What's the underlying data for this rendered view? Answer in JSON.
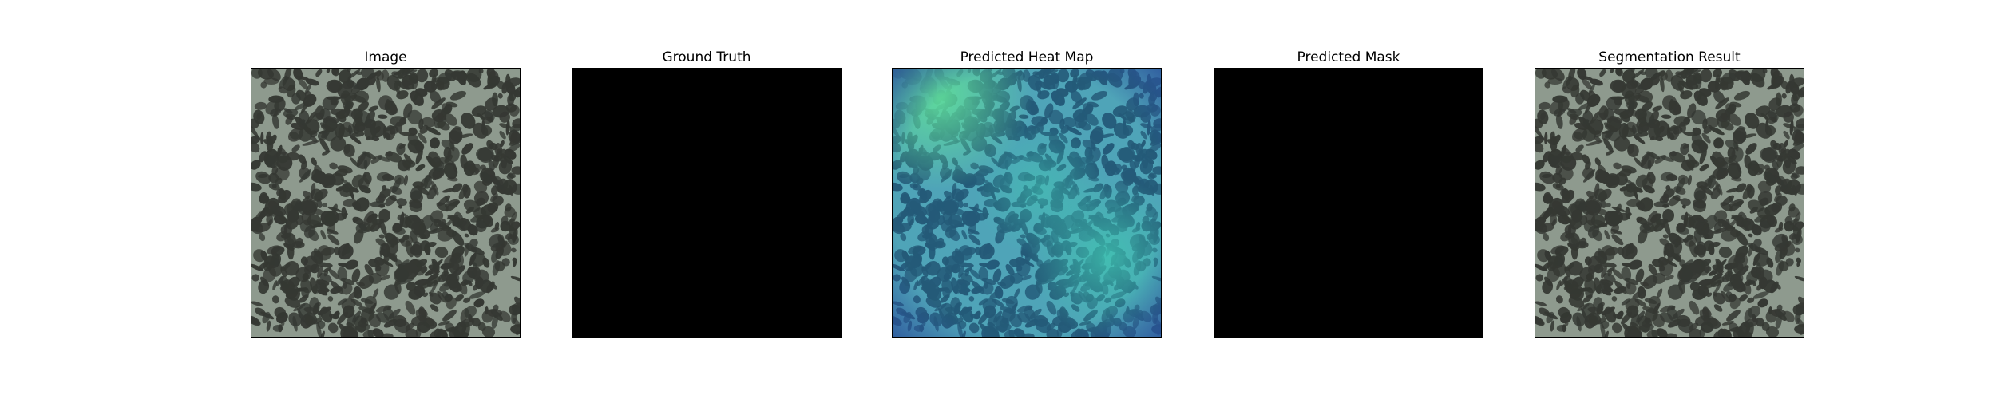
{
  "figure": {
    "panels": [
      {
        "title": "Image",
        "kind": "texture",
        "colors": {
          "base": "#8e9a8e",
          "blob": "#353833"
        }
      },
      {
        "title": "Ground Truth",
        "kind": "mask",
        "colors": {
          "fill": "#000000"
        }
      },
      {
        "title": "Predicted Heat Map",
        "kind": "heatmap",
        "colors": {
          "base": "#4fa4b8",
          "blob": "#245a78",
          "hot": "#5fdc9a",
          "warm": "#3fc4b0",
          "edge": "#2a4f9a"
        }
      },
      {
        "title": "Predicted Mask",
        "kind": "mask",
        "colors": {
          "fill": "#000000"
        }
      },
      {
        "title": "Segmentation Result",
        "kind": "texture",
        "colors": {
          "base": "#8e9a8e",
          "blob": "#353833"
        }
      }
    ]
  }
}
